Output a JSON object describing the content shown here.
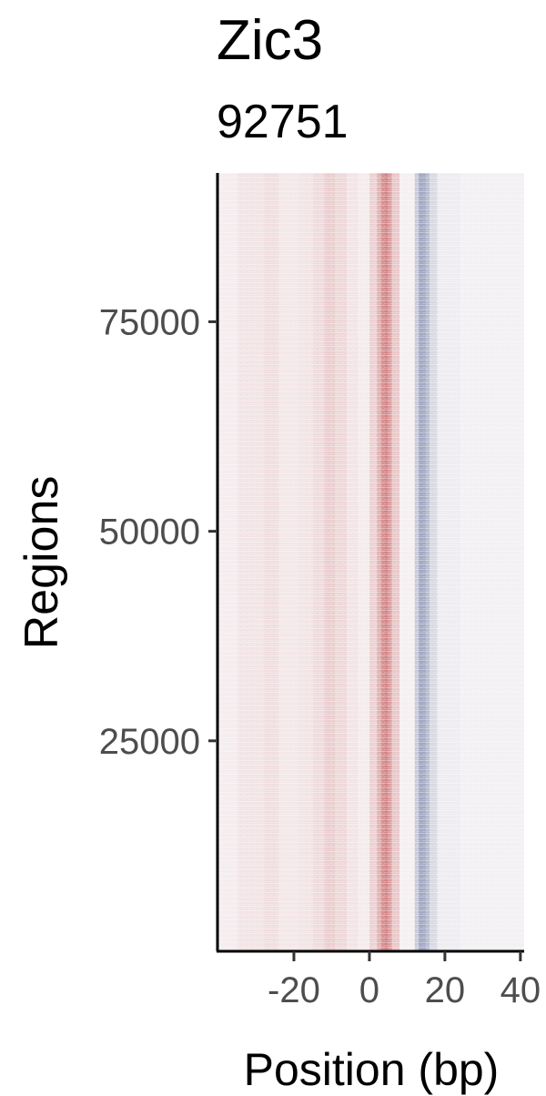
{
  "chart_data": {
    "type": "heatmap",
    "title": "Zic3",
    "subtitle": "92751",
    "xlabel": "Position (bp)",
    "ylabel": "Regions",
    "xlim": [
      -40,
      41
    ],
    "ylim": [
      1,
      92751
    ],
    "x_ticks": [
      -20,
      0,
      20,
      40
    ],
    "y_ticks": [
      25000,
      50000,
      75000
    ],
    "grid": false,
    "colors": {
      "positive": "#b22222",
      "negative": "#2c3e7a",
      "neutral": "#f7f4f6"
    },
    "column_profile": [
      {
        "from": -40,
        "to": -35,
        "value": 0.05
      },
      {
        "from": -35,
        "to": -28,
        "value": 0.1
      },
      {
        "from": -28,
        "to": -24,
        "value": 0.14
      },
      {
        "from": -24,
        "to": -19,
        "value": 0.08
      },
      {
        "from": -19,
        "to": -15,
        "value": 0.1
      },
      {
        "from": -15,
        "to": -12,
        "value": 0.16
      },
      {
        "from": -12,
        "to": -9,
        "value": 0.24
      },
      {
        "from": -9,
        "to": -6,
        "value": 0.18
      },
      {
        "from": -6,
        "to": -3,
        "value": 0.1
      },
      {
        "from": -3,
        "to": 0,
        "value": 0.06
      },
      {
        "from": 0,
        "to": 2,
        "value": 0.22
      },
      {
        "from": 2,
        "to": 3,
        "value": 0.42
      },
      {
        "from": 3,
        "to": 4,
        "value": 0.62
      },
      {
        "from": 4,
        "to": 5,
        "value": 0.72
      },
      {
        "from": 5,
        "to": 6,
        "value": 0.55
      },
      {
        "from": 6,
        "to": 8,
        "value": 0.28
      },
      {
        "from": 8,
        "to": 12,
        "value": 0.03
      },
      {
        "from": 12,
        "to": 13,
        "value": -0.3
      },
      {
        "from": 13,
        "to": 15,
        "value": -0.55
      },
      {
        "from": 15,
        "to": 16,
        "value": -0.42
      },
      {
        "from": 16,
        "to": 18,
        "value": -0.2
      },
      {
        "from": 18,
        "to": 24,
        "value": -0.06
      },
      {
        "from": 24,
        "to": 41,
        "value": -0.03
      }
    ]
  }
}
